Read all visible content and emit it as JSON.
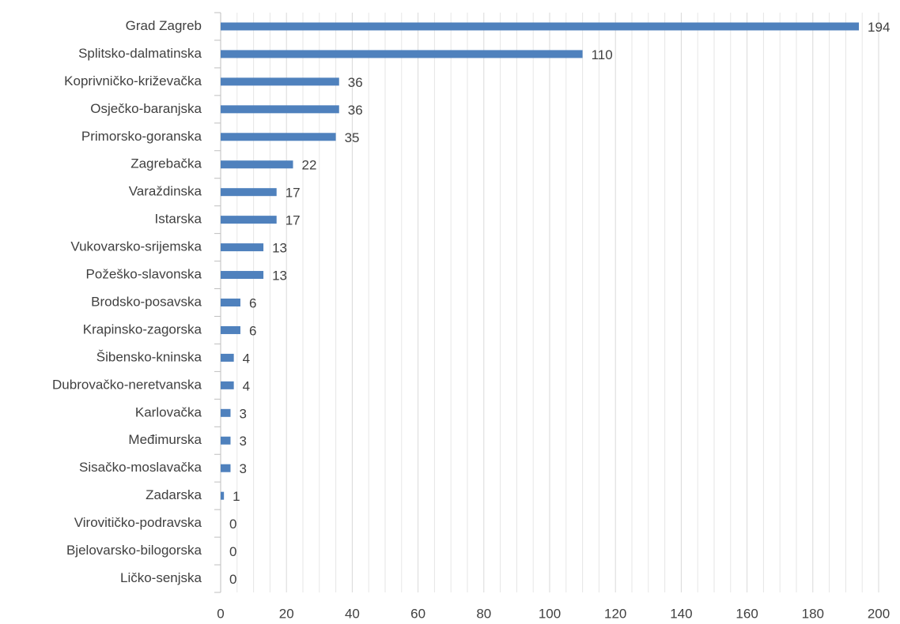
{
  "chart_data": {
    "type": "bar",
    "orientation": "horizontal",
    "categories": [
      "Grad Zagreb",
      "Splitsko-dalmatinska",
      "Koprivničko-križevačka",
      "Osječko-baranjska",
      "Primorsko-goranska",
      "Zagrebačka",
      "Varaždinska",
      "Istarska",
      "Vukovarsko-srijemska",
      "Požeško-slavonska",
      "Brodsko-posavska",
      "Krapinsko-zagorska",
      "Šibensko-kninska",
      "Dubrovačko-neretvanska",
      "Karlovačka",
      "Međimurska",
      "Sisačko-moslavačka",
      "Zadarska",
      "Virovitičko-podravska",
      "Bjelovarsko-bilogorska",
      "Ličko-senjska"
    ],
    "values": [
      194,
      110,
      36,
      36,
      35,
      22,
      17,
      17,
      13,
      13,
      6,
      6,
      4,
      4,
      3,
      3,
      3,
      1,
      0,
      0,
      0
    ],
    "color": "#4f81bd",
    "xlim": [
      0,
      200
    ],
    "xticks": [
      0,
      20,
      40,
      60,
      80,
      100,
      120,
      140,
      160,
      180,
      200
    ],
    "grid": true,
    "minor_grid": true
  }
}
